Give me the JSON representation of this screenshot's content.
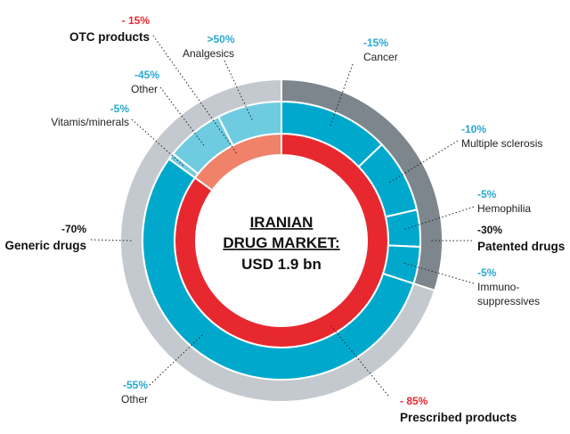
{
  "chart_data": {
    "type": "donut",
    "center_title_lines": [
      "IRANIAN",
      "DRUG MARKET:"
    ],
    "center_value": "USD 1.9 bn",
    "colors": {
      "otc": "#f0826a",
      "prescribed": "#e8282f",
      "generic_ring": "#00a9cc",
      "otc_segments": "#6fcbe0",
      "patented_segments": "#00a9cc",
      "generic_outer": "#c4c9cf",
      "patented_outer": "#7d858d",
      "pct_red": "#e8282f",
      "pct_blue": "#29a8cf"
    },
    "inner_ring": [
      {
        "name": "OTC products",
        "pct": "- 15%",
        "value": 15
      },
      {
        "name": "Prescribed products",
        "pct": "- 85%",
        "value": 85
      }
    ],
    "outer_ring": [
      {
        "name": "Patented drugs",
        "pct": "-30%",
        "value": 30
      },
      {
        "name": "Generic drugs",
        "pct": "-70%",
        "value": 70
      }
    ],
    "segments": [
      {
        "name": "Cancer",
        "pct": "-15%",
        "value": 15
      },
      {
        "name": "Multiple sclerosis",
        "pct": "-10%",
        "value": 10
      },
      {
        "name": "Hemophilia",
        "pct": "-5%",
        "value": 5
      },
      {
        "name": "Immuno-\nsuppressives",
        "pct": "-5%",
        "value": 5
      },
      {
        "name": "Other",
        "pct": "-55%",
        "value": 55
      },
      {
        "name": "Vitamis/minerals",
        "pct": "-5%",
        "value": 5
      },
      {
        "name": "Other",
        "pct": "-45%",
        "value": 45
      },
      {
        "name": "Analgesics",
        "pct": ">50%",
        "value": 50
      }
    ]
  }
}
